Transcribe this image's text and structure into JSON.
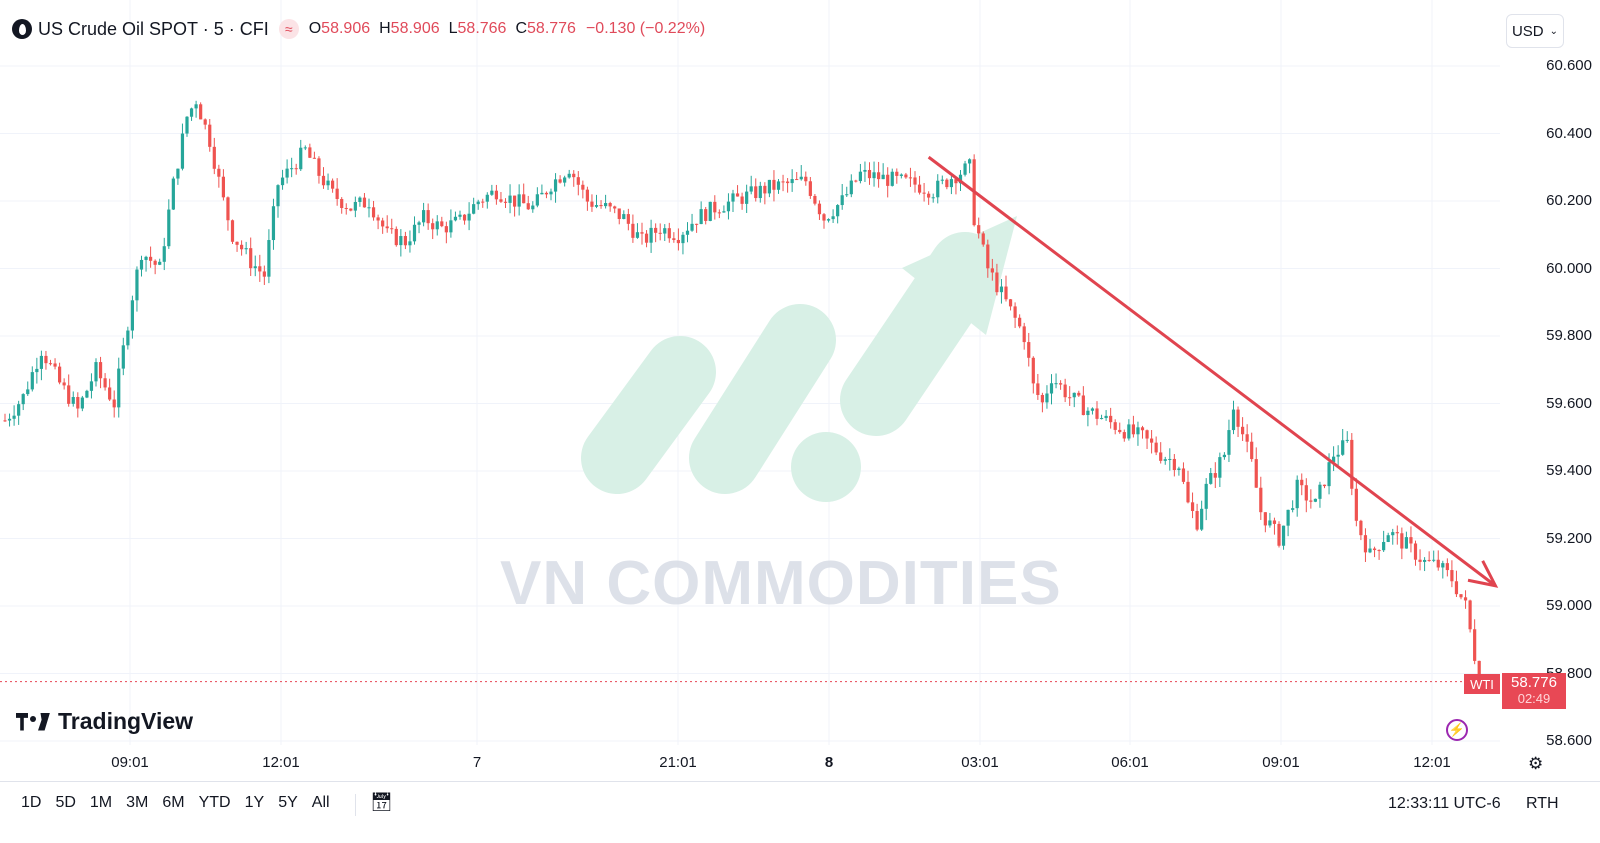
{
  "header": {
    "symbol_text": "US Crude Oil SPOT · 5 · CFI",
    "o_key": "O",
    "o_val": "58.906",
    "h_key": "H",
    "h_val": "58.906",
    "l_key": "L",
    "l_val": "58.766",
    "c_key": "C",
    "c_val": "58.776",
    "change": "−0.130 (−0.22%)"
  },
  "currency": "USD",
  "price_axis": [
    "60.600",
    "60.400",
    "60.200",
    "60.000",
    "59.800",
    "59.600",
    "59.400",
    "59.200",
    "59.000",
    "58.800",
    "58.600"
  ],
  "time_axis": [
    "09:01",
    "12:01",
    "7",
    "21:01",
    "8",
    "03:01",
    "06:01",
    "09:01",
    "12:01"
  ],
  "last_price": {
    "tag": "WTI",
    "price": "58.776",
    "countdown": "02:49"
  },
  "watermark": "VN COMMODITIES",
  "brand": "TradingView",
  "ranges": [
    "1D",
    "5D",
    "1M",
    "3M",
    "6M",
    "YTD",
    "1Y",
    "5Y",
    "All"
  ],
  "clock": "12:33:11 UTC-6",
  "session": "RTH",
  "colors": {
    "up": "#26a69a",
    "down": "#ef5350",
    "accent": "#e84855",
    "trend_arrow": "#e0444f",
    "watermark_green": "#d6f0e6"
  },
  "icons": {
    "logo": "crude-oil-drop-icon",
    "indicator": "wave-icon",
    "bolt": "lightning-icon",
    "settings": "gear-icon",
    "goto": "calendar-icon"
  },
  "chart_data": {
    "type": "candlestick",
    "ylim": [
      58.6,
      60.6
    ],
    "x_ticks": [
      "09:01",
      "12:01",
      "7",
      "21:01",
      "8",
      "03:01",
      "06:01",
      "09:01",
      "12:01"
    ],
    "path": [
      [
        0,
        59.55
      ],
      [
        4,
        59.62
      ],
      [
        8,
        59.76
      ],
      [
        12,
        59.66
      ],
      [
        16,
        59.58
      ],
      [
        20,
        59.7
      ],
      [
        24,
        59.6
      ],
      [
        28,
        59.92
      ],
      [
        30,
        60.05
      ],
      [
        34,
        60.0
      ],
      [
        37,
        60.25
      ],
      [
        40,
        60.45
      ],
      [
        42,
        60.5
      ],
      [
        45,
        60.38
      ],
      [
        48,
        60.2
      ],
      [
        50,
        60.1
      ],
      [
        54,
        60.02
      ],
      [
        57,
        59.98
      ],
      [
        60,
        60.25
      ],
      [
        63,
        60.3
      ],
      [
        66,
        60.35
      ],
      [
        69,
        60.28
      ],
      [
        72,
        60.22
      ],
      [
        76,
        60.18
      ],
      [
        80,
        60.2
      ],
      [
        84,
        60.1
      ],
      [
        88,
        60.08
      ],
      [
        92,
        60.15
      ],
      [
        96,
        60.12
      ],
      [
        100,
        60.14
      ],
      [
        104,
        60.2
      ],
      [
        108,
        60.23
      ],
      [
        112,
        60.2
      ],
      [
        116,
        60.18
      ],
      [
        120,
        60.25
      ],
      [
        124,
        60.3
      ],
      [
        128,
        60.2
      ],
      [
        132,
        60.18
      ],
      [
        136,
        60.15
      ],
      [
        140,
        60.08
      ],
      [
        144,
        60.12
      ],
      [
        148,
        60.1
      ],
      [
        152,
        60.15
      ],
      [
        156,
        60.18
      ],
      [
        160,
        60.2
      ],
      [
        164,
        60.22
      ],
      [
        168,
        60.24
      ],
      [
        172,
        60.25
      ],
      [
        176,
        60.26
      ],
      [
        180,
        60.15
      ],
      [
        184,
        60.2
      ],
      [
        188,
        60.28
      ],
      [
        192,
        60.27
      ],
      [
        196,
        60.26
      ],
      [
        200,
        60.25
      ],
      [
        204,
        60.23
      ],
      [
        208,
        60.27
      ],
      [
        212,
        60.3
      ],
      [
        213,
        60.15
      ],
      [
        216,
        60.0
      ],
      [
        220,
        59.9
      ],
      [
        224,
        59.8
      ],
      [
        226,
        59.65
      ],
      [
        228,
        59.6
      ],
      [
        230,
        59.68
      ],
      [
        234,
        59.62
      ],
      [
        238,
        59.58
      ],
      [
        242,
        59.55
      ],
      [
        246,
        59.52
      ],
      [
        250,
        59.5
      ],
      [
        254,
        59.45
      ],
      [
        258,
        59.42
      ],
      [
        260,
        59.3
      ],
      [
        262,
        59.25
      ],
      [
        264,
        59.35
      ],
      [
        268,
        59.45
      ],
      [
        270,
        59.6
      ],
      [
        274,
        59.42
      ],
      [
        276,
        59.28
      ],
      [
        280,
        59.2
      ],
      [
        284,
        59.35
      ],
      [
        288,
        59.3
      ],
      [
        292,
        59.45
      ],
      [
        295,
        59.48
      ],
      [
        297,
        59.25
      ],
      [
        300,
        59.15
      ],
      [
        304,
        59.22
      ],
      [
        308,
        59.18
      ],
      [
        312,
        59.13
      ],
      [
        315,
        59.12
      ],
      [
        318,
        59.08
      ],
      [
        321,
        59.0
      ],
      [
        324,
        58.78
      ]
    ],
    "annotations": [
      {
        "kind": "arrow",
        "label": "",
        "from": [
          203,
          60.33
        ],
        "to": [
          299,
          59.06
        ],
        "color": "#e0444f"
      }
    ]
  }
}
